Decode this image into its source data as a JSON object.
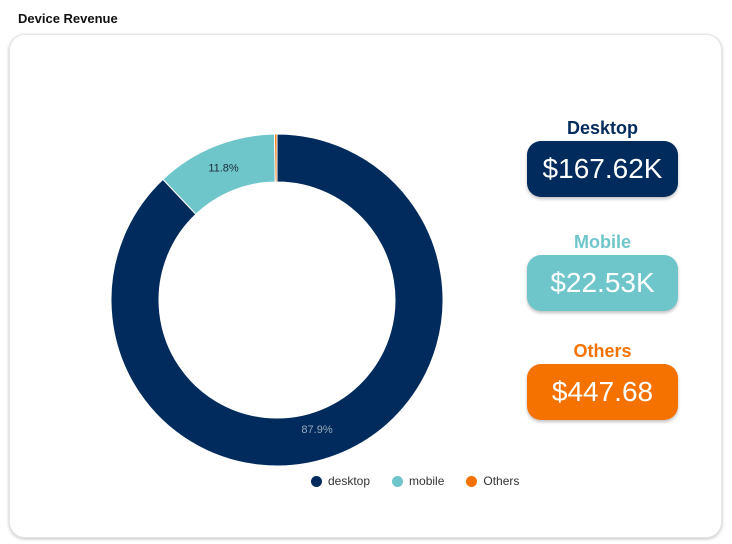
{
  "section_title": "Device Revenue",
  "colors": {
    "desktop": "#002b5c",
    "mobile": "#6ec6cb",
    "others": "#f57200"
  },
  "chart_data": {
    "type": "pie",
    "variant": "donut",
    "title": "",
    "categories": [
      "desktop",
      "mobile",
      "Others"
    ],
    "values": [
      167620,
      22530,
      447.68
    ],
    "percent_labels": [
      "87.9%",
      "11.8%",
      ""
    ],
    "legend_position": "bottom"
  },
  "legend": {
    "items": [
      {
        "label": "desktop",
        "color": "#002b5c"
      },
      {
        "label": "mobile",
        "color": "#6ec6cb"
      },
      {
        "label": "Others",
        "color": "#f57200"
      }
    ]
  },
  "kpis": [
    {
      "label": "Desktop",
      "value": "$167.62K",
      "color": "#002b5c"
    },
    {
      "label": "Mobile",
      "value": "$22.53K",
      "color": "#6ec6cb"
    },
    {
      "label": "Others",
      "value": "$447.68",
      "color": "#f57200"
    }
  ]
}
